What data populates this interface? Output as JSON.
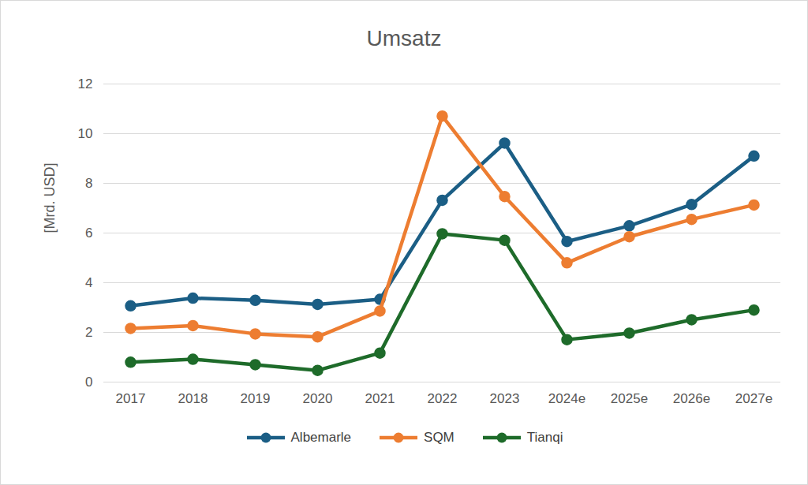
{
  "chart_data": {
    "type": "line",
    "title": "Umsatz",
    "y_label": "[Mrd. USD]",
    "categories": [
      "2017",
      "2018",
      "2019",
      "2020",
      "2021",
      "2022",
      "2023",
      "2024e",
      "2025e",
      "2026e",
      "2027e"
    ],
    "series": [
      {
        "name": "Albemarle",
        "color": "#1b5e85",
        "values": [
          3.07,
          3.38,
          3.29,
          3.13,
          3.33,
          7.32,
          9.62,
          5.66,
          6.29,
          7.15,
          9.1
        ]
      },
      {
        "name": "SQM",
        "color": "#ed7d31",
        "values": [
          2.16,
          2.27,
          1.94,
          1.82,
          2.86,
          10.71,
          7.47,
          4.8,
          5.85,
          6.55,
          7.13
        ]
      },
      {
        "name": "Tianqi",
        "color": "#1e6b2a",
        "values": [
          0.8,
          0.92,
          0.7,
          0.47,
          1.17,
          5.97,
          5.71,
          1.71,
          1.97,
          2.51,
          2.9
        ]
      }
    ],
    "ylim": [
      0,
      12
    ],
    "yticks": [
      0,
      2,
      4,
      6,
      8,
      10,
      12
    ],
    "grid": true,
    "legend": "bottom",
    "marker": "circle"
  }
}
